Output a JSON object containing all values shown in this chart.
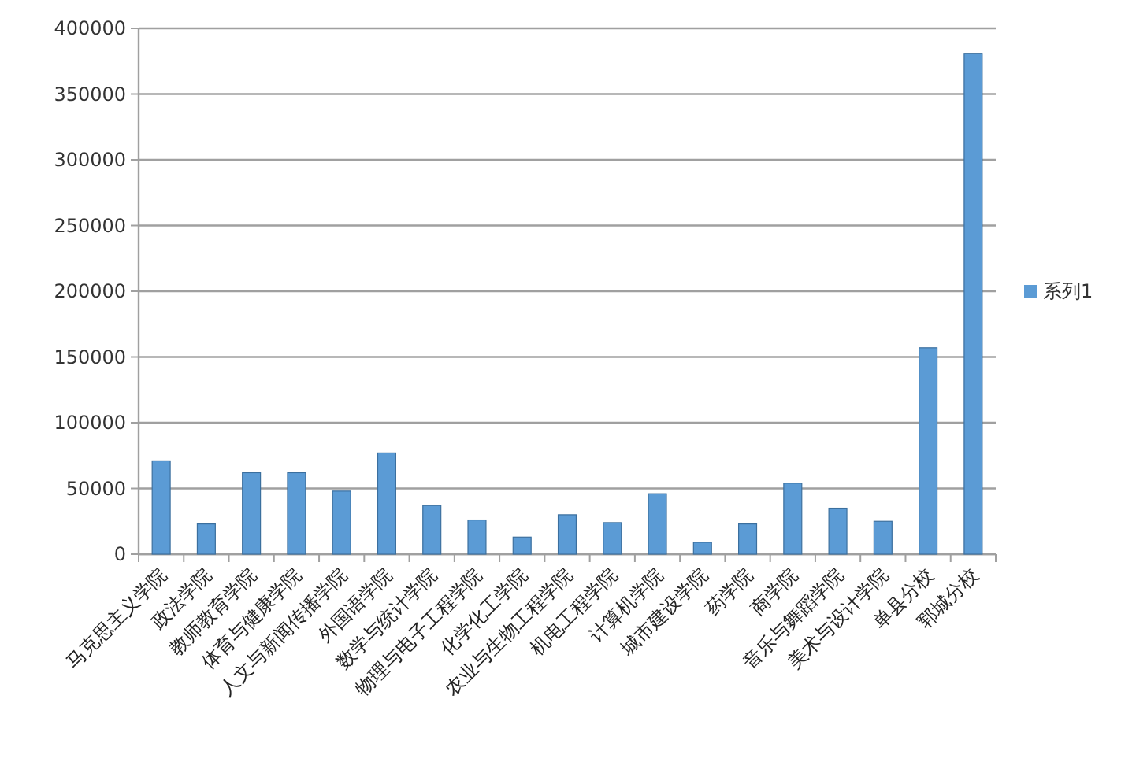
{
  "chart_data": {
    "type": "bar",
    "categories": [
      "马克思主义学院",
      "政法学院",
      "教师教育学院",
      "体育与健康学院",
      "人文与新闻传播学院",
      "外国语学院",
      "数学与统计学院",
      "物理与电子工程学院",
      "化学化工学院",
      "农业与生物工程学院",
      "机电工程学院",
      "计算机学院",
      "城市建设学院",
      "药学院",
      "商学院",
      "音乐与舞蹈学院",
      "美术与设计学院",
      "单县分校",
      "郓城分校"
    ],
    "series": [
      {
        "name": "系列1",
        "color": "#5b9bd5",
        "values": [
          71000,
          23000,
          62000,
          62000,
          48000,
          77000,
          37000,
          26000,
          13000,
          30000,
          24000,
          46000,
          9000,
          23000,
          54000,
          35000,
          25000,
          157000,
          381000
        ]
      }
    ],
    "ylim": [
      0,
      400000
    ],
    "yticks": [
      0,
      50000,
      100000,
      150000,
      200000,
      250000,
      300000,
      350000,
      400000
    ],
    "grid": "y",
    "legend": "right"
  }
}
